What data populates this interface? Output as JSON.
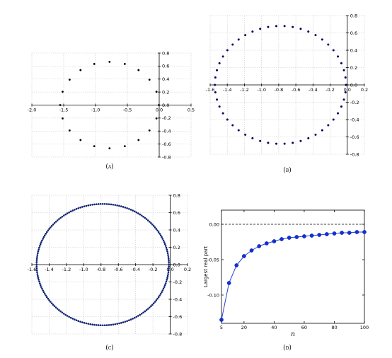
{
  "chart_data": [
    {
      "id": "A",
      "caption": "(a)",
      "type": "scatter",
      "n_points": 20,
      "center": [
        -0.78,
        0.0
      ],
      "radius": [
        0.775,
        0.665
      ],
      "xlim": [
        -2.0,
        0.5
      ],
      "ylim": [
        -0.8,
        0.8
      ],
      "xticks": [
        -2.0,
        -1.5,
        -1.0,
        -0.5,
        0.0,
        0.5
      ],
      "xtick_labels": [
        "-2.0",
        "-1.5",
        "-1.0",
        "-0.5",
        "0.0",
        "0.5"
      ],
      "yticks": [
        -0.8,
        -0.6,
        -0.4,
        -0.2,
        0.0,
        0.2,
        0.4,
        0.6,
        0.8
      ],
      "ytick_labels": [
        "-0.8",
        "-0.6",
        "-0.4",
        "-0.2",
        "0.0",
        "0.2",
        "0.4",
        "0.6",
        "0.8"
      ],
      "grid": true,
      "marker_color": "#000000"
    },
    {
      "id": "B",
      "caption": "(b)",
      "type": "scatter",
      "n_points": 50,
      "center": [
        -0.78,
        0.0
      ],
      "radius": [
        0.765,
        0.68
      ],
      "xlim": [
        -1.6,
        0.2
      ],
      "ylim": [
        -0.8,
        0.8
      ],
      "xticks": [
        -1.6,
        -1.4,
        -1.2,
        -1.0,
        -0.8,
        -0.6,
        -0.4,
        -0.2,
        0.0,
        0.2
      ],
      "xtick_labels": [
        "-1.6",
        "-1.4",
        "-1.2",
        "-1.0",
        "-0.8",
        "-0.6",
        "-0.4",
        "-0.2",
        "0.0",
        "0.2"
      ],
      "yticks": [
        -0.8,
        -0.6,
        -0.4,
        -0.2,
        0.0,
        0.2,
        0.4,
        0.6,
        0.8
      ],
      "ytick_labels": [
        "-0.8",
        "-0.6",
        "-0.4",
        "-0.2",
        "0.0",
        "0.2",
        "0.4",
        "0.6",
        "0.8"
      ],
      "grid": true,
      "marker_color": "#000066"
    },
    {
      "id": "C",
      "caption": "(c)",
      "type": "scatter",
      "n_points": 200,
      "center": [
        -0.78,
        0.0
      ],
      "radius": [
        0.765,
        0.7
      ],
      "xlim": [
        -1.6,
        0.2
      ],
      "ylim": [
        -0.8,
        0.8
      ],
      "xticks": [
        -1.6,
        -1.4,
        -1.2,
        -1.0,
        -0.8,
        -0.6,
        -0.4,
        -0.2,
        0.0,
        0.2
      ],
      "xtick_labels": [
        "-1.6",
        "-1.4",
        "-1.2",
        "-1.0",
        "-0.8",
        "-0.6",
        "-0.4",
        "-0.2",
        "0.0",
        "0.2"
      ],
      "yticks": [
        -0.8,
        -0.6,
        -0.4,
        -0.2,
        0.0,
        0.2,
        0.4,
        0.6,
        0.8
      ],
      "ytick_labels": [
        "-0.8",
        "-0.6",
        "-0.4",
        "-0.2",
        "0.0",
        "0.2",
        "0.4",
        "0.6",
        "0.8"
      ],
      "grid": true,
      "marker_color": "#0a1f70"
    },
    {
      "id": "D",
      "caption": "(d)",
      "type": "line",
      "xlabel": "n",
      "ylabel": "Largest real part",
      "x": [
        5,
        10,
        15,
        20,
        25,
        30,
        35,
        40,
        45,
        50,
        55,
        60,
        65,
        70,
        75,
        80,
        85,
        90,
        95,
        100
      ],
      "y": [
        -0.135,
        -0.083,
        -0.058,
        -0.045,
        -0.037,
        -0.031,
        -0.027,
        -0.024,
        -0.021,
        -0.019,
        -0.018,
        -0.017,
        -0.016,
        -0.015,
        -0.014,
        -0.013,
        -0.012,
        -0.012,
        -0.011,
        -0.011
      ],
      "xlim": [
        5,
        100
      ],
      "ylim": [
        -0.14,
        0.02
      ],
      "xticks": [
        5,
        20,
        40,
        60,
        80,
        100
      ],
      "xtick_labels": [
        "5",
        "20",
        "40",
        "60",
        "80",
        "100"
      ],
      "yticks": [
        -0.1,
        -0.05,
        0.0
      ],
      "ytick_labels": [
        "-0.10",
        "-0.05",
        "0.00"
      ],
      "reference_line": 0.0,
      "line_color": "#2a3fd0",
      "marker_color": "#1030e0"
    }
  ]
}
